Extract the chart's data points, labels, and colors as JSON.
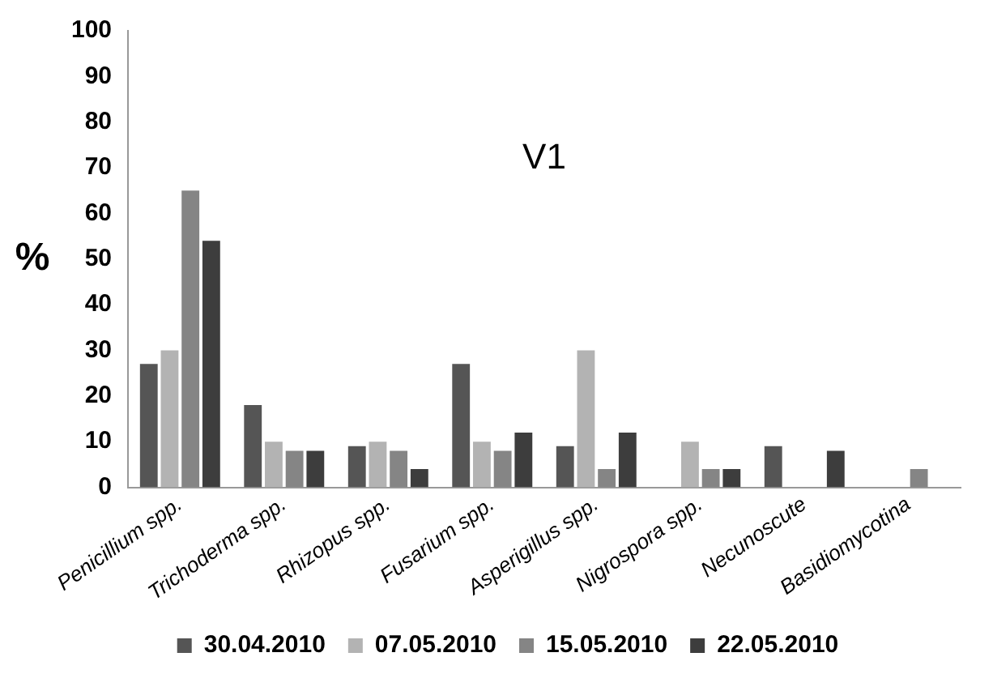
{
  "chart_data": {
    "type": "bar",
    "title": "V1",
    "ylabel": "%",
    "categories": [
      "Penicillium spp.",
      "Trichoderma spp.",
      "Rhizopus spp.",
      "Fusarium spp.",
      "Asperigillus spp.",
      "Nigrospora spp.",
      "Necunoscute",
      "Basidiomycotina"
    ],
    "series": [
      {
        "name": "30.04.2010",
        "color": "#555555",
        "values": [
          27,
          18,
          9,
          27,
          9,
          0,
          9,
          0
        ]
      },
      {
        "name": "07.05.2010",
        "color": "#b3b3b3",
        "values": [
          30,
          10,
          10,
          10,
          30,
          10,
          0,
          0
        ]
      },
      {
        "name": "15.05.2010",
        "color": "#858585",
        "values": [
          65,
          8,
          8,
          8,
          4,
          4,
          0,
          4
        ]
      },
      {
        "name": "22.05.2010",
        "color": "#3d3d3d",
        "values": [
          54,
          8,
          4,
          12,
          12,
          4,
          8,
          0
        ]
      }
    ],
    "ylim": [
      0,
      100
    ],
    "yticks": [
      0,
      10,
      20,
      30,
      40,
      50,
      60,
      70,
      80,
      90,
      100
    ],
    "grid": false,
    "legend": "bottom"
  }
}
